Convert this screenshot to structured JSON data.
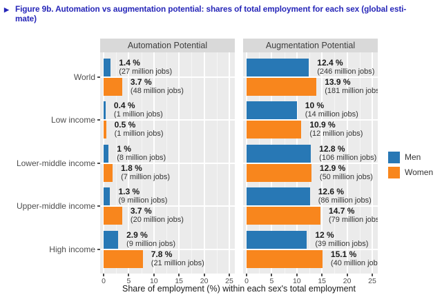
{
  "figure": {
    "bullet": "▶",
    "title_line1": "Figure 9b. Automation vs augmentation potential: shares of total employment for each sex (global esti-",
    "title_line2": "mate)"
  },
  "colors": {
    "title_blue": "#2626b8",
    "men": "#2878b5",
    "women": "#f8861d",
    "panel_bg": "#ebebeb",
    "strip_bg": "#d9d9d9",
    "axis_text": "#4d4d4d"
  },
  "legend": {
    "items": [
      {
        "label": "Men",
        "color": "#2878b5"
      },
      {
        "label": "Women",
        "color": "#f8861d"
      }
    ]
  },
  "chart_data": {
    "type": "bar",
    "orientation": "horizontal",
    "grid": true,
    "legend_position": "right",
    "xlabel": "Share of employment (%) within each sex's total employment",
    "xlim": [
      0,
      25
    ],
    "x_ticks": [
      "0",
      "5",
      "10",
      "15",
      "20",
      "25"
    ],
    "categories": [
      "World",
      "Low income",
      "Lower-middle income",
      "Upper-middle income",
      "High income"
    ],
    "facets": [
      {
        "title": "Automation Potential",
        "rows": [
          {
            "category": "World",
            "men": {
              "value": 1.4,
              "pct": "1.4 %",
              "jobs": "(27 million jobs)"
            },
            "women": {
              "value": 3.7,
              "pct": "3.7 %",
              "jobs": "(48 million jobs)"
            }
          },
          {
            "category": "Low income",
            "men": {
              "value": 0.4,
              "pct": "0.4 %",
              "jobs": "(1 million jobs)"
            },
            "women": {
              "value": 0.5,
              "pct": "0.5 %",
              "jobs": "(1 million jobs)"
            }
          },
          {
            "category": "Lower-middle income",
            "men": {
              "value": 1.0,
              "pct": "1 %",
              "jobs": "(8 million jobs)"
            },
            "women": {
              "value": 1.8,
              "pct": "1.8 %",
              "jobs": "(7 million jobs)"
            }
          },
          {
            "category": "Upper-middle income",
            "men": {
              "value": 1.3,
              "pct": "1.3 %",
              "jobs": "(9 million jobs)"
            },
            "women": {
              "value": 3.7,
              "pct": "3.7 %",
              "jobs": "(20 million jobs)"
            }
          },
          {
            "category": "High income",
            "men": {
              "value": 2.9,
              "pct": "2.9 %",
              "jobs": "(9 million jobs)"
            },
            "women": {
              "value": 7.8,
              "pct": "7.8 %",
              "jobs": "(21 million jobs)"
            }
          }
        ]
      },
      {
        "title": "Augmentation Potential",
        "rows": [
          {
            "category": "World",
            "men": {
              "value": 12.4,
              "pct": "12.4 %",
              "jobs": "(246 million jobs)"
            },
            "women": {
              "value": 13.9,
              "pct": "13.9 %",
              "jobs": "(181 million jobs)"
            }
          },
          {
            "category": "Low income",
            "men": {
              "value": 10.0,
              "pct": "10 %",
              "jobs": "(14 million jobs)"
            },
            "women": {
              "value": 10.9,
              "pct": "10.9 %",
              "jobs": "(12 million jobs)"
            }
          },
          {
            "category": "Lower-middle income",
            "men": {
              "value": 12.8,
              "pct": "12.8 %",
              "jobs": "(106 million jobs)"
            },
            "women": {
              "value": 12.9,
              "pct": "12.9 %",
              "jobs": "(50 million jobs)"
            }
          },
          {
            "category": "Upper-middle income",
            "men": {
              "value": 12.6,
              "pct": "12.6 %",
              "jobs": "(86 million jobs)"
            },
            "women": {
              "value": 14.7,
              "pct": "14.7 %",
              "jobs": "(79 million jobs)"
            }
          },
          {
            "category": "High income",
            "men": {
              "value": 12.0,
              "pct": "12 %",
              "jobs": "(39 million jobs)"
            },
            "women": {
              "value": 15.1,
              "pct": "15.1 %",
              "jobs": "(40 million jobs)"
            }
          }
        ]
      }
    ]
  }
}
